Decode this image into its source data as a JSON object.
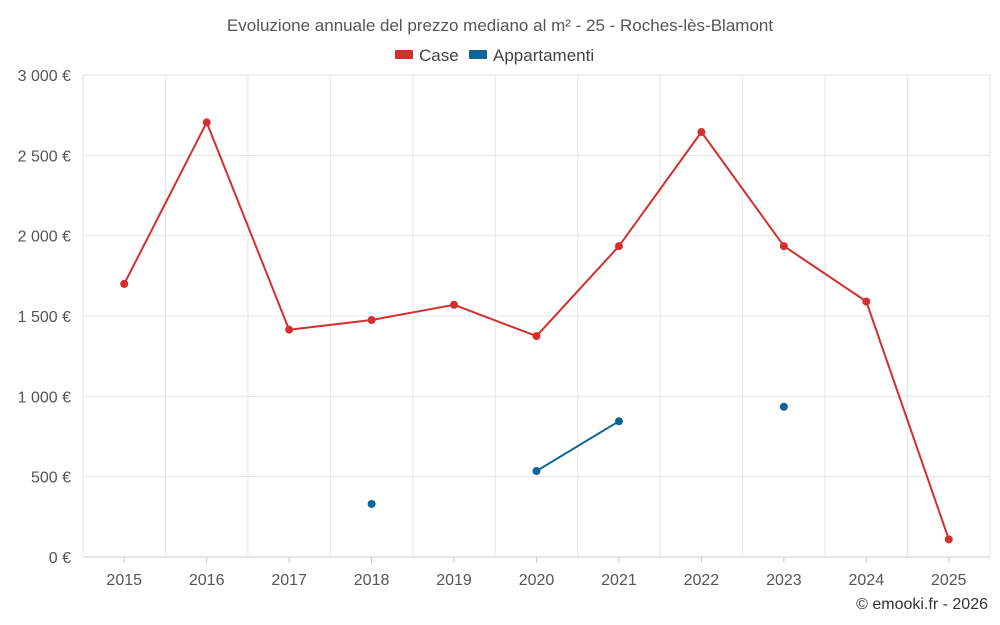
{
  "chart_data": {
    "type": "line",
    "title": "Evoluzione annuale del prezzo mediano al m² - 25 - Roches-lès-Blamont",
    "xlabel": "",
    "ylabel": "",
    "categories": [
      "2015",
      "2016",
      "2017",
      "2018",
      "2019",
      "2020",
      "2021",
      "2022",
      "2023",
      "2024",
      "2025"
    ],
    "ylim": [
      0,
      3000
    ],
    "yticks": [
      0,
      500,
      1000,
      1500,
      2000,
      2500,
      3000
    ],
    "ytick_labels": [
      "0 €",
      "500 €",
      "1 000 €",
      "1 500 €",
      "2 000 €",
      "2 500 €",
      "3 000 €"
    ],
    "grid": true,
    "legend_position": "top-center",
    "series": [
      {
        "name": "Case",
        "color": "#d32f2f",
        "values": [
          1700,
          2705,
          1415,
          1475,
          1570,
          1375,
          1935,
          2645,
          1935,
          1590,
          110
        ]
      },
      {
        "name": "Appartamenti",
        "color": "#0f6499",
        "values": [
          null,
          null,
          null,
          330,
          null,
          535,
          845,
          null,
          935,
          null,
          null
        ]
      }
    ]
  },
  "credit": "© emooki.fr - 2026"
}
